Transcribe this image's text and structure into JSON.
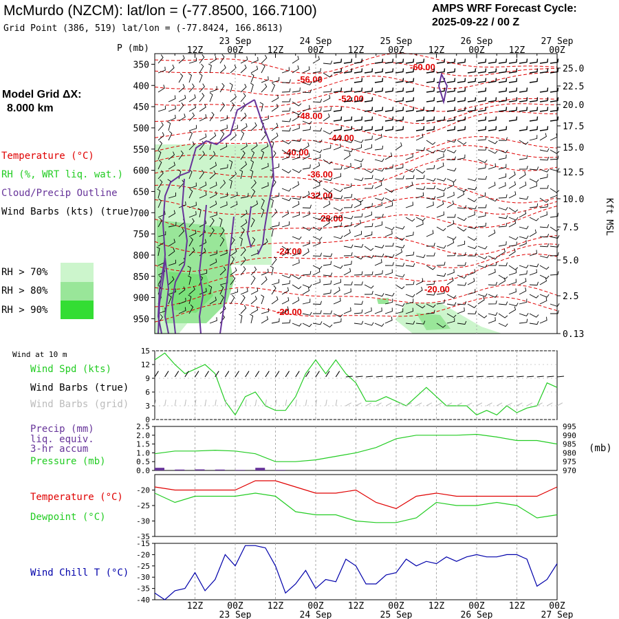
{
  "header": {
    "title": "McMurdo (NZCM):  lat/lon = (-77.8500, 166.7100)",
    "grid_point": "Grid Point (386, 519) lat/lon = (-77.8424, 166.8613)",
    "forecast_line1": "AMPS WRF Forecast Cycle:",
    "forecast_line2": "2025-09-22 / 00  Z"
  },
  "legend": {
    "model_grid_line1": "Model Grid ΔX:",
    "model_grid_line2": "8.000 km",
    "temperature": "Temperature (°C)",
    "rh": "RH (%, WRT liq. wat.)",
    "cloud": "Cloud/Precip Outline",
    "wind": "Wind Barbs (kts) (true)",
    "rh70": "RH > 70%",
    "rh80": "RH > 80%",
    "rh90": "RH > 90%"
  },
  "colors": {
    "temp": "#e00000",
    "rh70": "#ccf5cc",
    "rh80": "#99e699",
    "rh90": "#33dd33",
    "cloud": "#663399",
    "wind": "#000000",
    "green": "#22cc22",
    "blue": "#0000aa",
    "grid": "#888888"
  },
  "time_axis": {
    "top_hours": [
      "12Z",
      "00Z",
      "12Z",
      "00Z",
      "12Z",
      "00Z",
      "12Z",
      "00Z",
      "12Z",
      "00Z"
    ],
    "top_dates": [
      "23 Sep",
      "24 Sep",
      "25 Sep",
      "26 Sep",
      "27 Sep"
    ],
    "bottom_hours": [
      "12Z",
      "00Z",
      "12Z",
      "00Z",
      "12Z",
      "00Z",
      "12Z",
      "00Z",
      "12Z",
      "00Z"
    ],
    "bottom_dates": [
      "23 Sep",
      "24 Sep",
      "25 Sep",
      "26 Sep",
      "27 Sep"
    ]
  },
  "cross_section": {
    "p_label": "P (mb)",
    "pressure_ticks": [
      "350",
      "400",
      "450",
      "500",
      "550",
      "600",
      "650",
      "700",
      "750",
      "800",
      "850",
      "900",
      "950"
    ],
    "height_label": "Kft MSL",
    "height_ticks": [
      "25.0",
      "22.5",
      "20.0",
      "17.5",
      "15.0",
      "12.5",
      "10.0",
      "7.5",
      "5.0",
      "2.5",
      "0.13"
    ],
    "contour_labels": [
      "-60.00",
      "-56.00",
      "-52.00",
      "-48.00",
      "-44.00",
      "-40.00",
      "-36.00",
      "-32.00",
      "-28.00",
      "-24.00",
      "-20.00",
      "-20.00"
    ]
  },
  "panels": {
    "wind10m_title": "Wind at 10 m",
    "wind_spd_label": "Wind Spd (kts)",
    "wind_barbs_true": "Wind Barbs (true)",
    "wind_barbs_grid": "Wind Barbs (grid)",
    "precip_label1": "Precip (mm)",
    "precip_label2": "liq. equiv.",
    "precip_label3": "3-hr accum",
    "pressure_label": "Pressure (mb)",
    "mb_unit": "(mb)",
    "temp_label": "Temperature (°C)",
    "dew_label": "Dewpoint (°C)",
    "wchill_label": "Wind Chill T (°C)"
  },
  "chart_data": [
    {
      "type": "line",
      "title": "Wind at 10 m",
      "ylabel": "Wind Spd (kts)",
      "yticks": [
        "15",
        "12",
        "9",
        "6",
        "3",
        "0"
      ],
      "ylim": [
        0,
        15
      ],
      "x_hours": [
        0,
        3,
        6,
        9,
        12,
        15,
        18,
        21,
        24,
        27,
        30,
        33,
        36,
        39,
        42,
        45,
        48,
        51,
        54,
        57,
        60,
        63,
        66,
        69,
        72,
        75,
        78,
        81,
        84,
        87,
        90,
        93,
        96,
        99,
        102,
        105,
        108,
        111,
        114,
        117,
        120
      ],
      "series": [
        {
          "name": "Wind Spd (kts)",
          "values": [
            13,
            14.5,
            12,
            10,
            11,
            12,
            10,
            4,
            1,
            5,
            6,
            3,
            2,
            2,
            5,
            10,
            13,
            10,
            13,
            10,
            8,
            4,
            4,
            5,
            4,
            3,
            5,
            7,
            5,
            3,
            3,
            3,
            1,
            2,
            1,
            3,
            1.5,
            2.5,
            3,
            8,
            7
          ]
        }
      ]
    },
    {
      "type": "line",
      "title": "Precip / Pressure",
      "ylabel": "Precip (mm)",
      "yticks": [
        "2.5",
        "2.0",
        "1.5",
        "1.0",
        "0.5",
        "0.0"
      ],
      "ylim": [
        0,
        2.5
      ],
      "y2label": "Pressure (mb)",
      "y2ticks": [
        "995",
        "990",
        "985",
        "980",
        "975",
        "970"
      ],
      "y2lim": [
        970,
        995
      ],
      "x_hours": [
        0,
        6,
        12,
        18,
        24,
        30,
        36,
        42,
        48,
        54,
        60,
        66,
        72,
        78,
        84,
        90,
        96,
        102,
        108,
        114,
        120
      ],
      "series": [
        {
          "name": "Pressure (mb)",
          "values": [
            979.5,
            981,
            981,
            981.5,
            981,
            979.5,
            975,
            975,
            976,
            978,
            980,
            983,
            988,
            990,
            990,
            990,
            990.5,
            989,
            987,
            987,
            985
          ]
        },
        {
          "name": "Precip (mm)",
          "type": "bar",
          "values": [
            0.15,
            0.05,
            0.06,
            0.05,
            0.03,
            0.15,
            0.03,
            0.0,
            0.0,
            0.0,
            0.0,
            0.0,
            0.0,
            0.0,
            0.0,
            0.0,
            0.0,
            0.0,
            0.0,
            0.0,
            0.0
          ]
        }
      ]
    },
    {
      "type": "line",
      "title": "Temperature / Dewpoint",
      "ylabel": "Temperature (°C)",
      "yticks": [
        "-20",
        "-25",
        "-30",
        "-35"
      ],
      "ylim": [
        -35,
        -15
      ],
      "x_hours": [
        0,
        6,
        12,
        18,
        24,
        30,
        36,
        42,
        48,
        54,
        60,
        66,
        72,
        78,
        84,
        90,
        96,
        102,
        108,
        114,
        120
      ],
      "series": [
        {
          "name": "Temperature (°C)",
          "values": [
            -19,
            -20,
            -20,
            -20,
            -20,
            -17,
            -17,
            -19,
            -21,
            -21,
            -20,
            -24,
            -26,
            -22,
            -21,
            -22,
            -22,
            -22,
            -22,
            -22,
            -19
          ]
        },
        {
          "name": "Dewpoint (°C)",
          "values": [
            -21,
            -24,
            -22,
            -22,
            -22,
            -21,
            -22,
            -27,
            -28,
            -28,
            -30,
            -30.5,
            -30.5,
            -29,
            -24,
            -25,
            -25,
            -24,
            -25,
            -29,
            -28
          ]
        }
      ]
    },
    {
      "type": "line",
      "title": "Wind Chill",
      "ylabel": "Wind Chill T (°C)",
      "yticks": [
        "-15",
        "-20",
        "-25",
        "-30",
        "-35",
        "-40"
      ],
      "ylim": [
        -40,
        -15
      ],
      "x_hours": [
        0,
        3,
        6,
        9,
        12,
        15,
        18,
        21,
        24,
        27,
        30,
        33,
        36,
        39,
        42,
        45,
        48,
        51,
        54,
        57,
        60,
        63,
        66,
        69,
        72,
        75,
        78,
        81,
        84,
        87,
        90,
        93,
        96,
        99,
        102,
        105,
        108,
        111,
        114,
        117,
        120
      ],
      "series": [
        {
          "name": "Wind Chill T (°C)",
          "values": [
            -37,
            -40,
            -36,
            -35,
            -28,
            -36,
            -31,
            -20,
            -25,
            -16,
            -16,
            -17,
            -25,
            -37,
            -33,
            -27,
            -35,
            -31,
            -32,
            -22,
            -25,
            -33,
            -33,
            -29,
            -28,
            -22,
            -25,
            -23,
            -24,
            -21,
            -23,
            -21,
            -20,
            -21,
            -21,
            -20,
            -20,
            -22,
            -34,
            -31,
            -24
          ]
        }
      ]
    }
  ]
}
